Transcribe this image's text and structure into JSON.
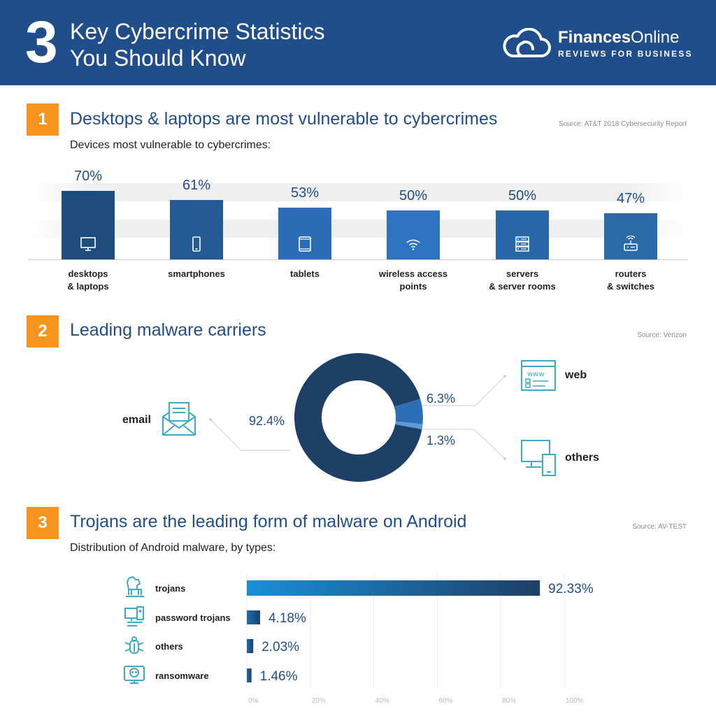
{
  "header": {
    "big_number": "3",
    "title_line1": "Key Cybercrime Statistics",
    "title_line2": "You Should Know",
    "brand_name_bold": "Finances",
    "brand_name_rest": "Online",
    "brand_tagline": "REVIEWS FOR BUSINESS"
  },
  "colors": {
    "header_bg": "#1f4e8a",
    "badge": "#f7941d",
    "dark_navy": "#1e3f66",
    "mid_blue": "#2d6fb7",
    "light_blue": "#1a8fd6",
    "icon_teal": "#3fa9c9"
  },
  "section1": {
    "badge": "1",
    "title": "Desktops & laptops are most vulnerable to cybercrimes",
    "source": "Source: AT&T 2018 Cybersecurity Report",
    "subtitle": "Devices most vulnerable to cybercrimes:"
  },
  "section2": {
    "badge": "2",
    "title": "Leading malware carriers",
    "source": "Source: Verizon",
    "labels": {
      "email": "email",
      "web": "web",
      "others": "others"
    }
  },
  "section3": {
    "badge": "3",
    "title": "Trojans are the leading form of malware on Android",
    "source": "Source: AV-TEST",
    "subtitle": "Distribution of Android malware, by types:"
  },
  "chart_data": [
    {
      "type": "bar",
      "title": "Devices most vulnerable to cybercrimes:",
      "categories": [
        "desktops\n& laptops",
        "smartphones",
        "tablets",
        "wireless access\npoints",
        "servers\n& server rooms",
        "routers\n& switches"
      ],
      "values": [
        70,
        61,
        53,
        50,
        50,
        47
      ],
      "value_labels": [
        "70%",
        "61%",
        "53%",
        "50%",
        "50%",
        "47%"
      ],
      "icons": [
        "desktop-icon",
        "smartphone-icon",
        "tablet-icon",
        "wifi-icon",
        "server-icon",
        "router-icon"
      ],
      "unit": "%",
      "grid": false
    },
    {
      "type": "pie",
      "variant": "donut",
      "title": "Leading malware carriers",
      "categories": [
        "email",
        "web",
        "others"
      ],
      "values": [
        92.4,
        6.3,
        1.3
      ],
      "value_labels": [
        "92.4%",
        "6.3%",
        "1.3%"
      ],
      "colors": [
        "#1e3f66",
        "#2d6fb7",
        "#5b9bd5"
      ],
      "icons": [
        "envelope-icon",
        "browser-icon",
        "devices-icon"
      ]
    },
    {
      "type": "bar",
      "orientation": "horizontal",
      "title": "Distribution of Android malware, by types:",
      "categories": [
        "trojans",
        "password trojans",
        "others",
        "ransomware"
      ],
      "values": [
        92.33,
        4.18,
        2.03,
        1.46
      ],
      "value_labels": [
        "92.33%",
        "4.18%",
        "2.03%",
        "1.46%"
      ],
      "icons": [
        "trojan-horse-icon",
        "password-icon",
        "bug-icon",
        "skull-icon"
      ],
      "xlim": [
        0,
        100
      ],
      "x_ticks": [
        "0%",
        "20%",
        "40%",
        "60%",
        "80%",
        "100%"
      ],
      "grid": true
    }
  ]
}
